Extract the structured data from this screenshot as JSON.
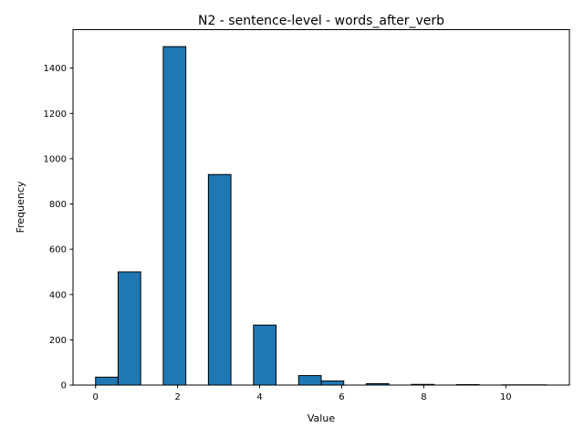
{
  "chart_data": {
    "type": "bar",
    "title": "N2 - sentence-level - words_after_verb",
    "xlabel": "Value",
    "ylabel": "Frequency",
    "bin_width": 0.55,
    "bins": [
      {
        "x0": 0.0,
        "x1": 0.55,
        "value": 35
      },
      {
        "x0": 0.55,
        "x1": 1.1,
        "value": 500
      },
      {
        "x0": 1.65,
        "x1": 2.2,
        "value": 1495
      },
      {
        "x0": 2.75,
        "x1": 3.3,
        "value": 930
      },
      {
        "x0": 3.85,
        "x1": 4.4,
        "value": 265
      },
      {
        "x0": 4.95,
        "x1": 5.5,
        "value": 42
      },
      {
        "x0": 5.5,
        "x1": 6.05,
        "value": 18
      },
      {
        "x0": 6.6,
        "x1": 7.15,
        "value": 6
      },
      {
        "x0": 7.7,
        "x1": 8.25,
        "value": 3
      },
      {
        "x0": 8.8,
        "x1": 9.35,
        "value": 2
      },
      {
        "x0": 9.9,
        "x1": 10.45,
        "value": 1
      },
      {
        "x0": 10.45,
        "x1": 11.0,
        "value": 1
      }
    ],
    "xlim": [
      -0.55,
      11.55
    ],
    "ylim": [
      0,
      1570
    ],
    "x_ticks": [
      "0",
      "2",
      "4",
      "6",
      "8",
      "10"
    ],
    "y_ticks": [
      "0",
      "200",
      "400",
      "600",
      "800",
      "1000",
      "1200",
      "1400"
    ],
    "grid": false,
    "legend": "none",
    "bar_color": "#1f77b4",
    "edge_color": "#000000"
  }
}
